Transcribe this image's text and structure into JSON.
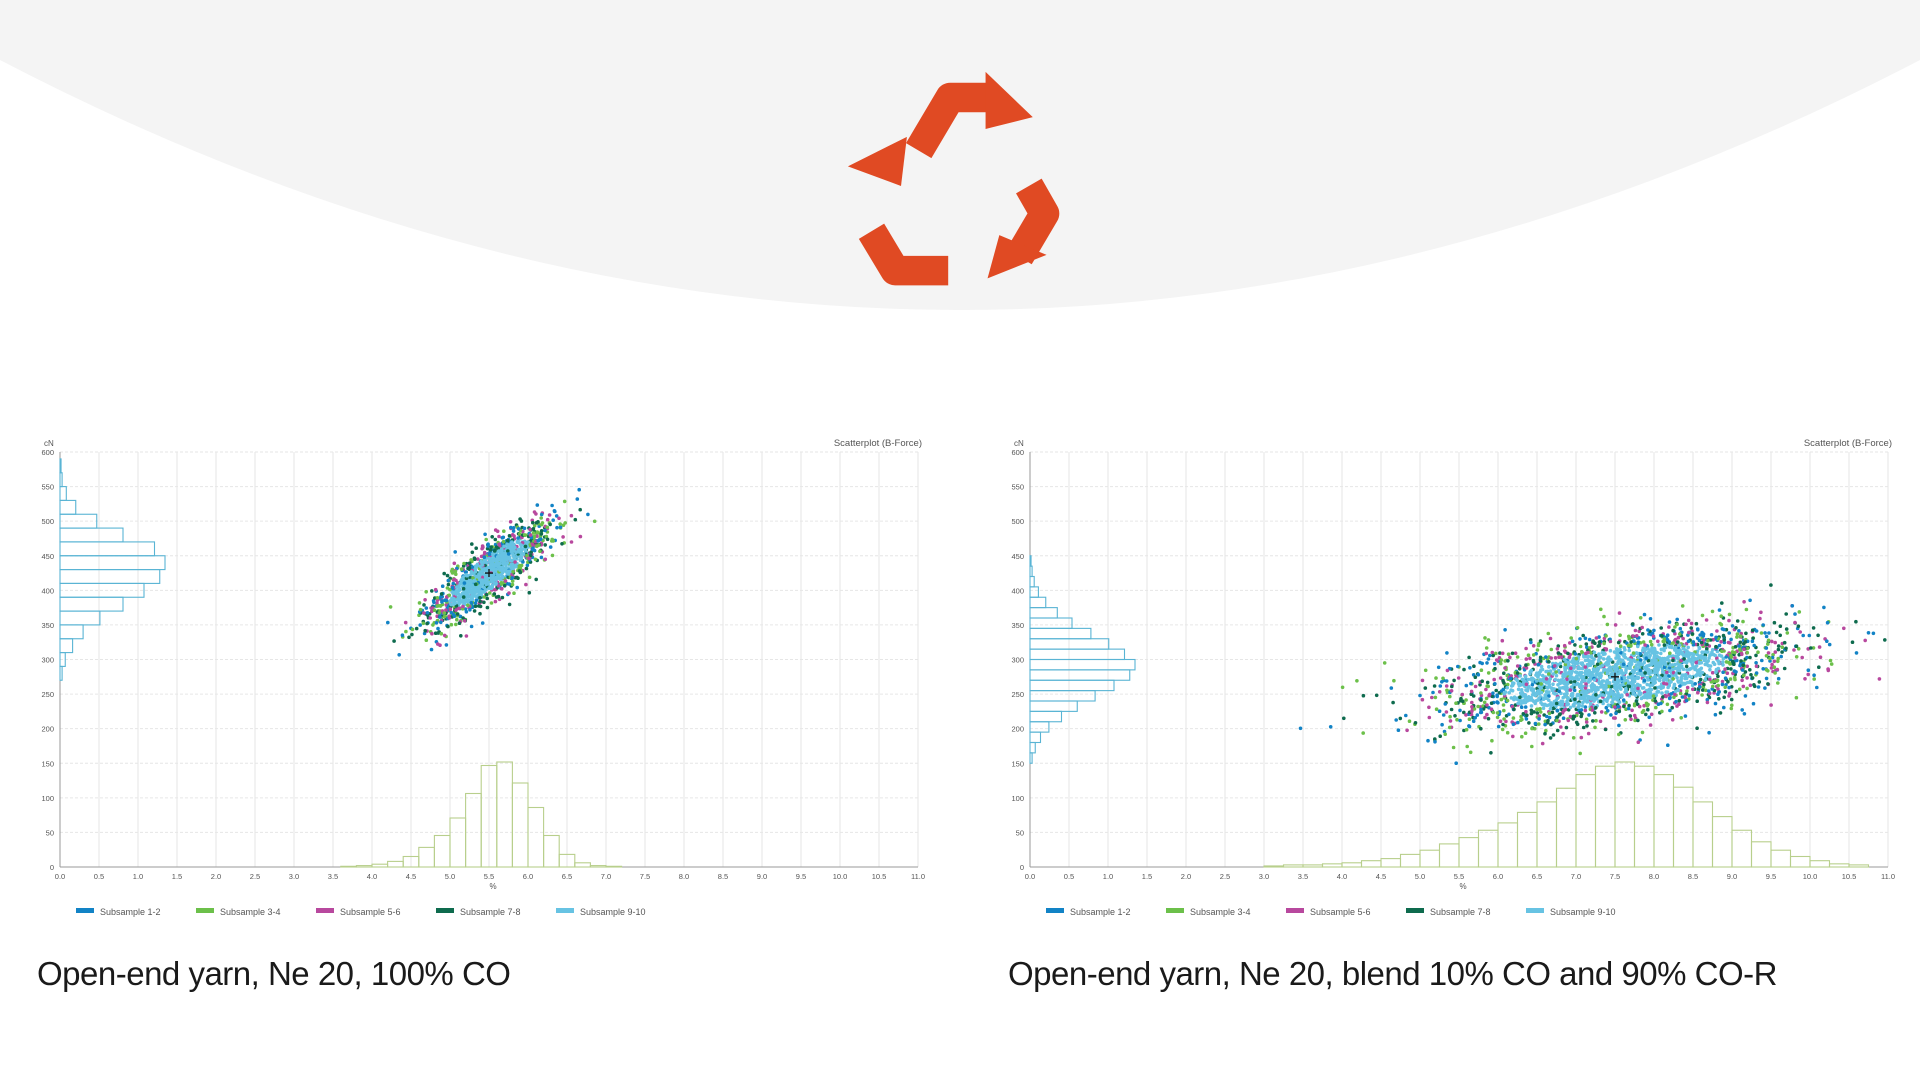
{
  "icons": {
    "logo": "recycle-icon"
  },
  "colors": {
    "logo": "#e04a23",
    "backdrop": "#f4f4f4",
    "grid": "#e6e6e6",
    "histogram": "#59b4d4",
    "x_histogram": "#b8cf8c",
    "series": [
      "#1283c6",
      "#6cc04a",
      "#b8489e",
      "#0e6b4e",
      "#67c3e3"
    ]
  },
  "chart_data": [
    {
      "type": "scatter",
      "title": "Scatterplot (B-Force)",
      "ylabel": "cN",
      "xlabel": "%",
      "xlim": [
        0,
        11
      ],
      "ylim": [
        0,
        600
      ],
      "xticks": [
        "0.0",
        "0.5",
        "1.0",
        "1.5",
        "2.0",
        "2.5",
        "3.0",
        "3.5",
        "4.0",
        "4.5",
        "5.0",
        "5.5",
        "6.0",
        "6.5",
        "7.0",
        "7.5",
        "8.0",
        "8.5",
        "9.0",
        "9.5",
        "10.0",
        "10.5",
        "11.0"
      ],
      "yticks": [
        "0",
        "50",
        "100",
        "150",
        "200",
        "250",
        "300",
        "350",
        "400",
        "450",
        "500",
        "550",
        "600"
      ],
      "legend": [
        "Subsample 1-2",
        "Subsample 3-4",
        "Subsample 5-6",
        "Subsample 7-8",
        "Subsample 9-10"
      ],
      "legend_position": "bottom-left",
      "grid": true,
      "center": {
        "x": 5.5,
        "y": 425
      },
      "cloud": {
        "sx": 0.4,
        "sy": 38,
        "corr": 0.85,
        "n": 1400
      },
      "x_histogram": {
        "bins": [
          3.6,
          3.8,
          4.0,
          4.2,
          4.4,
          4.6,
          4.8,
          5.0,
          5.2,
          5.4,
          5.6,
          5.8,
          6.0,
          6.2,
          6.4,
          6.6,
          6.8,
          7.0
        ],
        "values": [
          1,
          2,
          4,
          8,
          15,
          28,
          45,
          70,
          105,
          145,
          150,
          120,
          85,
          45,
          18,
          6,
          2,
          1
        ]
      },
      "y_histogram": {
        "bins": [
          270,
          290,
          310,
          330,
          350,
          370,
          390,
          410,
          430,
          450,
          470,
          490,
          510,
          530,
          550,
          570
        ],
        "values": [
          2,
          5,
          12,
          22,
          38,
          60,
          80,
          95,
          100,
          90,
          60,
          35,
          15,
          6,
          2,
          1
        ]
      }
    },
    {
      "type": "scatter",
      "title": "Scatterplot (B-Force)",
      "ylabel": "cN",
      "xlabel": "%",
      "xlim": [
        0,
        11
      ],
      "ylim": [
        0,
        600
      ],
      "xticks": [
        "0.0",
        "0.5",
        "1.0",
        "1.5",
        "2.0",
        "2.5",
        "3.0",
        "3.5",
        "4.0",
        "4.5",
        "5.0",
        "5.5",
        "6.0",
        "6.5",
        "7.0",
        "7.5",
        "8.0",
        "8.5",
        "9.0",
        "9.5",
        "10.0",
        "10.5",
        "11.0"
      ],
      "yticks": [
        "0",
        "50",
        "100",
        "150",
        "200",
        "250",
        "300",
        "350",
        "400",
        "450",
        "500",
        "550",
        "600"
      ],
      "legend": [
        "Subsample 1-2",
        "Subsample 3-4",
        "Subsample 5-6",
        "Subsample 7-8",
        "Subsample 9-10"
      ],
      "legend_position": "bottom-left",
      "grid": true,
      "center": {
        "x": 7.5,
        "y": 275
      },
      "cloud": {
        "sx": 1.1,
        "sy": 36,
        "corr": 0.5,
        "n": 2600
      },
      "x_histogram": {
        "bins": [
          3.0,
          3.25,
          3.5,
          3.75,
          4.0,
          4.25,
          4.5,
          4.75,
          5.0,
          5.25,
          5.5,
          5.75,
          6.0,
          6.25,
          6.5,
          6.75,
          7.0,
          7.25,
          7.5,
          7.75,
          8.0,
          8.25,
          8.5,
          8.75,
          9.0,
          9.25,
          9.5,
          9.75,
          10.0,
          10.25,
          10.5
        ],
        "values": [
          1,
          2,
          2,
          3,
          4,
          6,
          8,
          12,
          16,
          22,
          28,
          35,
          42,
          52,
          62,
          75,
          88,
          96,
          100,
          96,
          88,
          76,
          62,
          48,
          35,
          24,
          16,
          10,
          6,
          3,
          2
        ]
      },
      "y_histogram": {
        "bins": [
          150,
          165,
          180,
          195,
          210,
          225,
          240,
          255,
          270,
          285,
          300,
          315,
          330,
          345,
          360,
          375,
          390,
          405,
          420,
          435
        ],
        "values": [
          2,
          5,
          10,
          18,
          30,
          45,
          62,
          80,
          95,
          100,
          90,
          75,
          58,
          40,
          26,
          15,
          8,
          4,
          2,
          1
        ]
      }
    }
  ],
  "captions": {
    "left": "Open-end yarn, Ne 20, 100% CO",
    "right": "Open-end yarn, Ne 20, blend 10% CO and 90% CO-R"
  }
}
